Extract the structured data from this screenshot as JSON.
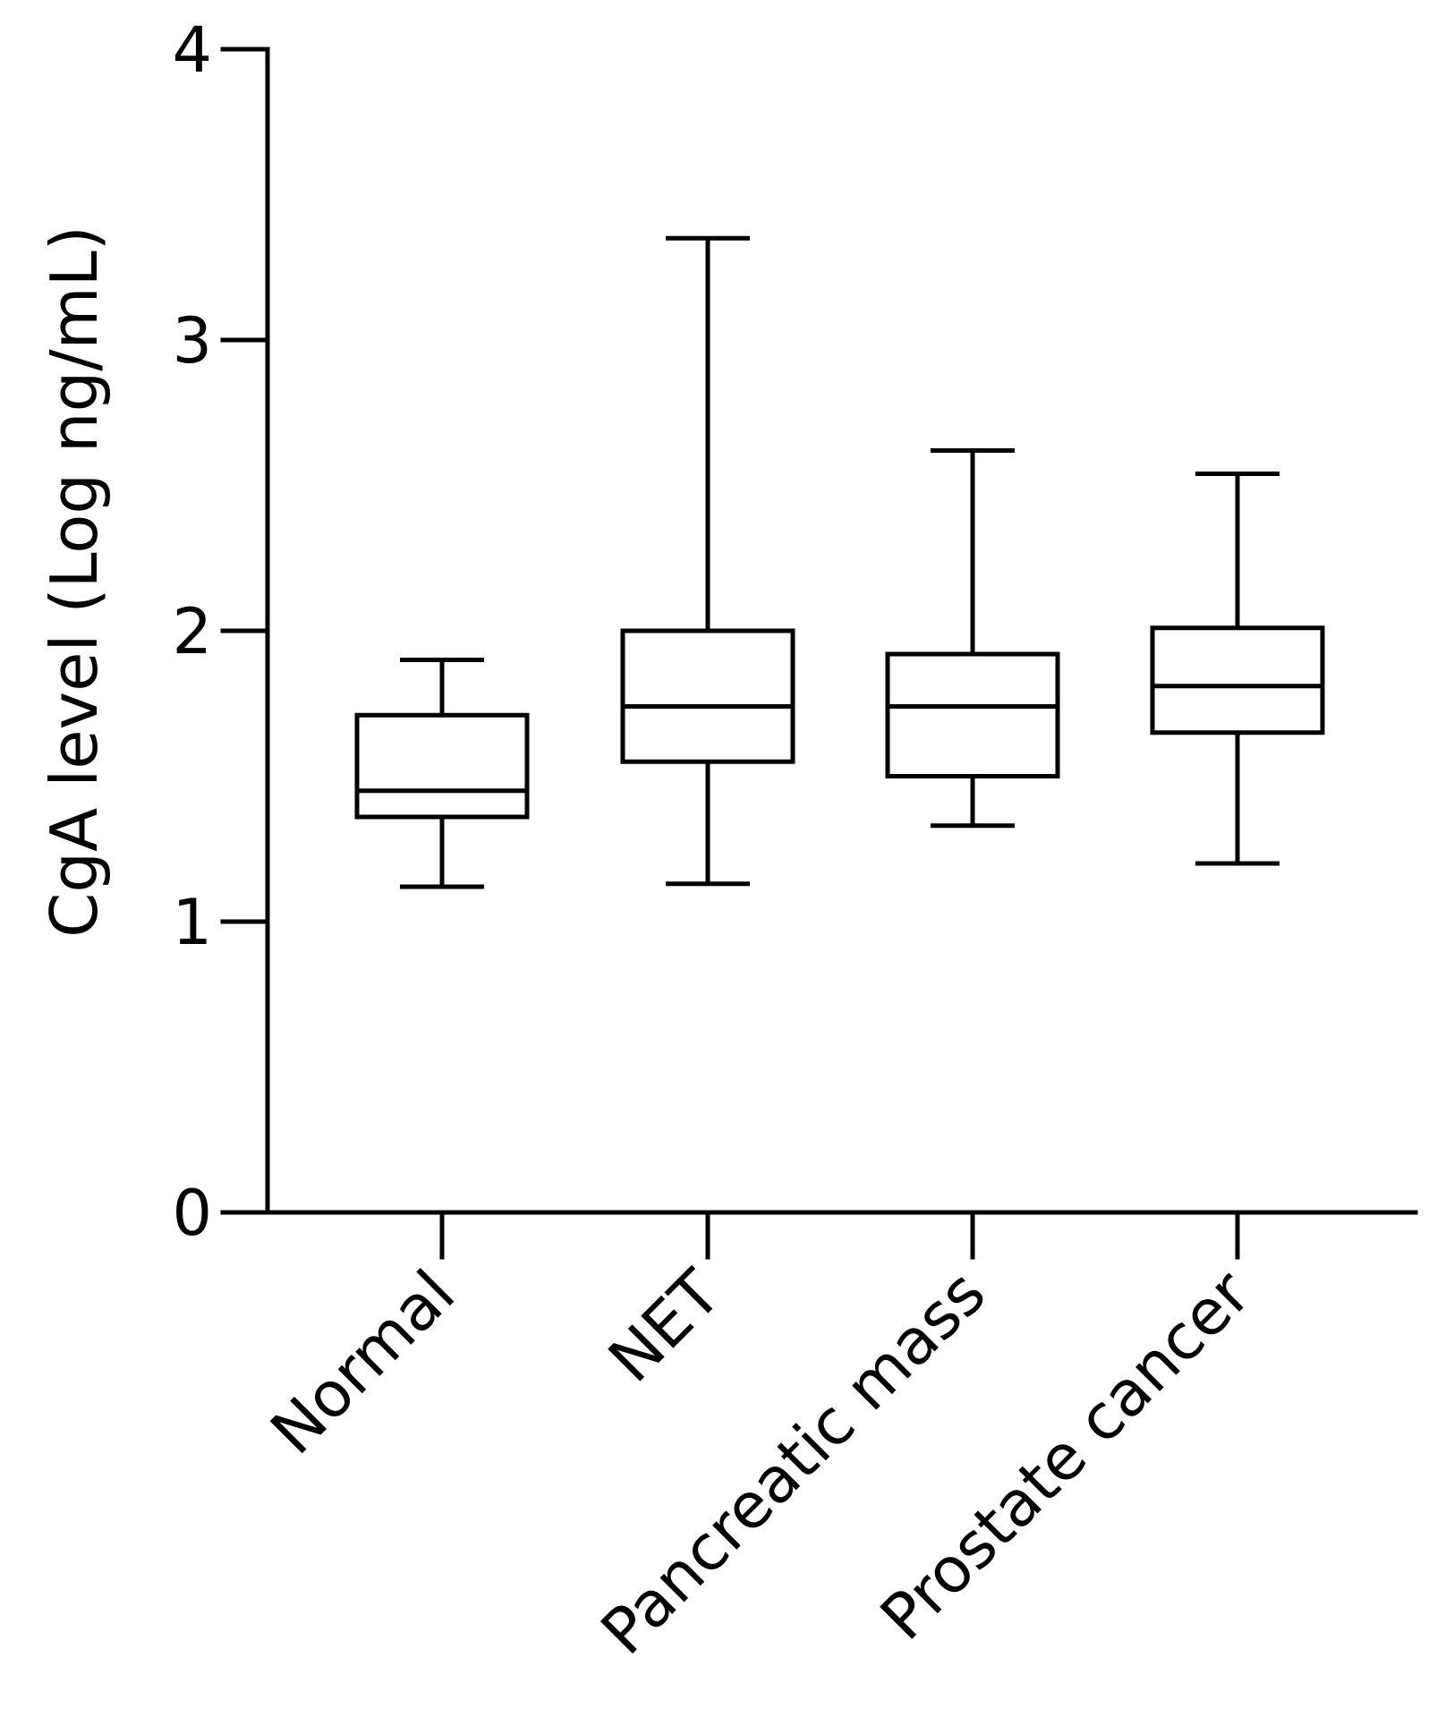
{
  "chart_data": {
    "type": "box",
    "title": "",
    "ylabel": "CgA level (Log ng/mL)",
    "xlabel": "",
    "ylim": [
      0,
      4
    ],
    "yticks": [
      0,
      1,
      2,
      3,
      4
    ],
    "grid": false,
    "categories": [
      "Normal",
      "NET",
      "Pancreatic mass",
      "Prostate cancer"
    ],
    "boxes": [
      {
        "category": "Normal",
        "min": 1.12,
        "q1": 1.36,
        "median": 1.45,
        "q3": 1.71,
        "max": 1.9
      },
      {
        "category": "NET",
        "min": 1.13,
        "q1": 1.55,
        "median": 1.74,
        "q3": 2.0,
        "max": 3.35
      },
      {
        "category": "Pancreatic mass",
        "min": 1.33,
        "q1": 1.5,
        "median": 1.74,
        "q3": 1.92,
        "max": 2.62
      },
      {
        "category": "Prostate cancer",
        "min": 1.2,
        "q1": 1.65,
        "median": 1.81,
        "q3": 2.01,
        "max": 2.54
      }
    ]
  }
}
